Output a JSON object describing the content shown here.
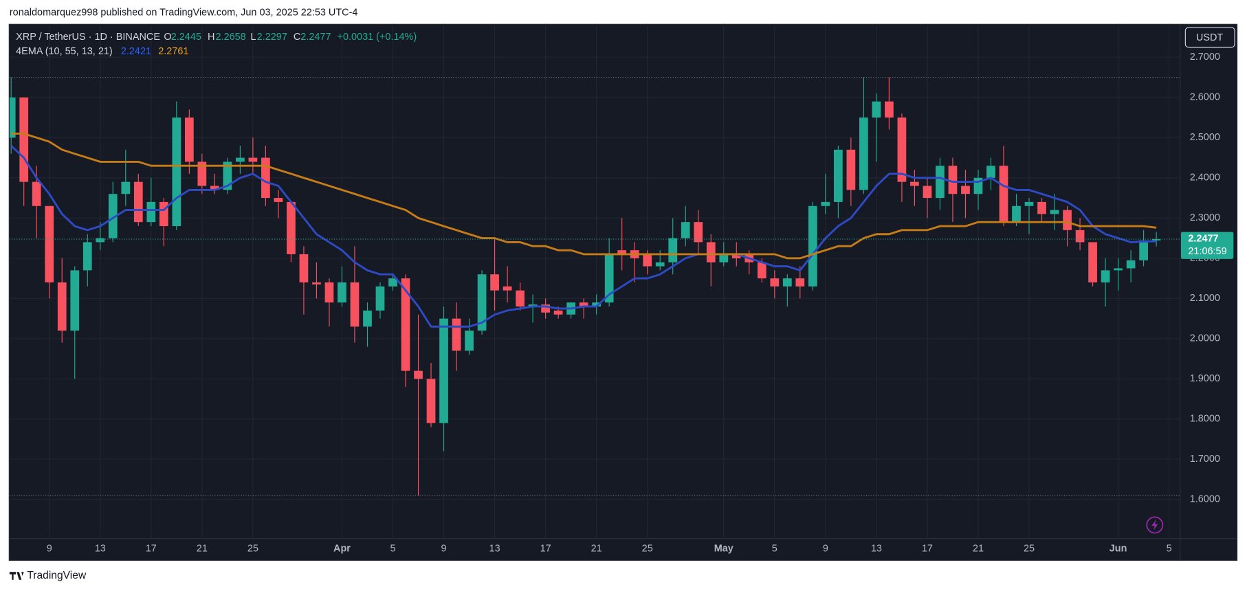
{
  "header": "ronaldomarquez998 published on TradingView.com, Jun 03, 2025 22:53 UTC-4",
  "footer": "TradingView",
  "chart_data": {
    "type": "candlestick",
    "symbol": "XRP / TetherUS · 1D · BINANCE",
    "ohlc_labels": [
      "O",
      "H",
      "L",
      "C"
    ],
    "change": "+0.0031 (+0.14%)",
    "indicator": "4EMA (10, 55, 13, 21)",
    "currency": "USDT",
    "countdown": "21:06:59",
    "categories": [
      "2025-03-06",
      "2025-03-07",
      "2025-03-08",
      "2025-03-09",
      "2025-03-10",
      "2025-03-11",
      "2025-03-12",
      "2025-03-13",
      "2025-03-14",
      "2025-03-15",
      "2025-03-16",
      "2025-03-17",
      "2025-03-18",
      "2025-03-19",
      "2025-03-20",
      "2025-03-21",
      "2025-03-22",
      "2025-03-23",
      "2025-03-24",
      "2025-03-25",
      "2025-03-26",
      "2025-03-27",
      "2025-03-28",
      "2025-03-29",
      "2025-03-30",
      "2025-03-31",
      "2025-04-01",
      "2025-04-02",
      "2025-04-03",
      "2025-04-04",
      "2025-04-05",
      "2025-04-06",
      "2025-04-07",
      "2025-04-08",
      "2025-04-09",
      "2025-04-10",
      "2025-04-11",
      "2025-04-12",
      "2025-04-13",
      "2025-04-14",
      "2025-04-15",
      "2025-04-16",
      "2025-04-17",
      "2025-04-18",
      "2025-04-19",
      "2025-04-20",
      "2025-04-21",
      "2025-04-22",
      "2025-04-23",
      "2025-04-24",
      "2025-04-25",
      "2025-04-26",
      "2025-04-27",
      "2025-04-28",
      "2025-04-29",
      "2025-04-30",
      "2025-05-01",
      "2025-05-02",
      "2025-05-03",
      "2025-05-04",
      "2025-05-05",
      "2025-05-06",
      "2025-05-07",
      "2025-05-08",
      "2025-05-09",
      "2025-05-10",
      "2025-05-11",
      "2025-05-12",
      "2025-05-13",
      "2025-05-14",
      "2025-05-15",
      "2025-05-16",
      "2025-05-17",
      "2025-05-18",
      "2025-05-19",
      "2025-05-20",
      "2025-05-21",
      "2025-05-22",
      "2025-05-23",
      "2025-05-24",
      "2025-05-25",
      "2025-05-26",
      "2025-05-27",
      "2025-05-28",
      "2025-05-29",
      "2025-05-30",
      "2025-05-31",
      "2025-06-01",
      "2025-06-02",
      "2025-06-03",
      "2025-06-04"
    ],
    "open": [
      2.5,
      2.6,
      2.39,
      2.33,
      2.14,
      2.02,
      2.17,
      2.24,
      2.25,
      2.36,
      2.39,
      2.29,
      2.34,
      2.28,
      2.55,
      2.44,
      2.38,
      2.37,
      2.44,
      2.45,
      2.45,
      2.35,
      2.34,
      2.21,
      2.14,
      2.14,
      2.09,
      2.14,
      2.03,
      2.07,
      2.13,
      2.15,
      1.92,
      1.9,
      1.79,
      2.05,
      1.97,
      2.02,
      2.16,
      2.13,
      2.12,
      2.08,
      2.085,
      2.07,
      2.06,
      2.09,
      2.08,
      2.09,
      2.22,
      2.22,
      2.21,
      2.18,
      2.19,
      2.25,
      2.29,
      2.24,
      2.19,
      2.21,
      2.21,
      2.19,
      2.15,
      2.13,
      2.15,
      2.13,
      2.33,
      2.34,
      2.47,
      2.37,
      2.55,
      2.59,
      2.55,
      2.39,
      2.38,
      2.35,
      2.43,
      2.38,
      2.36,
      2.4,
      2.43,
      2.29,
      2.33,
      2.34,
      2.31,
      2.32,
      2.27,
      2.24,
      2.14,
      2.17,
      2.175,
      2.195,
      2.2445
    ],
    "high": [
      2.65,
      2.6,
      2.43,
      2.33,
      2.2,
      2.18,
      2.26,
      2.29,
      2.39,
      2.47,
      2.41,
      2.4,
      2.35,
      2.59,
      2.57,
      2.46,
      2.41,
      2.45,
      2.48,
      2.5,
      2.48,
      2.37,
      2.34,
      2.23,
      2.19,
      2.15,
      2.18,
      2.23,
      2.09,
      2.14,
      2.16,
      2.16,
      2.06,
      1.94,
      2.08,
      2.09,
      2.05,
      2.17,
      2.25,
      2.18,
      2.14,
      2.11,
      2.1,
      2.08,
      2.09,
      2.1,
      2.11,
      2.25,
      2.3,
      2.24,
      2.22,
      2.22,
      2.3,
      2.33,
      2.32,
      2.26,
      2.24,
      2.24,
      2.22,
      2.2,
      2.17,
      2.16,
      2.18,
      2.34,
      2.41,
      2.48,
      2.5,
      2.65,
      2.61,
      2.65,
      2.56,
      2.42,
      2.4,
      2.45,
      2.45,
      2.42,
      2.42,
      2.45,
      2.48,
      2.36,
      2.35,
      2.35,
      2.36,
      2.33,
      2.3,
      2.24,
      2.2,
      2.2,
      2.22,
      2.27,
      2.2658
    ],
    "low": [
      2.46,
      2.33,
      2.25,
      2.1,
      1.99,
      1.9,
      2.13,
      2.22,
      2.24,
      2.33,
      2.28,
      2.28,
      2.23,
      2.27,
      2.41,
      2.36,
      2.36,
      2.36,
      2.41,
      2.41,
      2.33,
      2.3,
      2.19,
      2.06,
      2.1,
      2.03,
      2.08,
      1.99,
      1.98,
      2.05,
      2.12,
      1.88,
      1.61,
      1.78,
      1.72,
      1.92,
      1.96,
      2.01,
      2.07,
      2.09,
      2.07,
      2.04,
      2.05,
      2.05,
      2.05,
      2.05,
      2.06,
      2.08,
      2.17,
      2.14,
      2.16,
      2.17,
      2.16,
      2.23,
      2.21,
      2.13,
      2.18,
      2.18,
      2.16,
      2.14,
      2.1,
      2.08,
      2.1,
      2.12,
      2.31,
      2.3,
      2.33,
      2.36,
      2.44,
      2.52,
      2.34,
      2.33,
      2.3,
      2.32,
      2.29,
      2.3,
      2.32,
      2.37,
      2.28,
      2.28,
      2.26,
      2.29,
      2.27,
      2.23,
      2.22,
      2.13,
      2.08,
      2.12,
      2.14,
      2.18,
      2.2297
    ],
    "close": [
      2.6,
      2.39,
      2.33,
      2.14,
      2.02,
      2.17,
      2.24,
      2.25,
      2.36,
      2.39,
      2.29,
      2.34,
      2.28,
      2.55,
      2.44,
      2.38,
      2.37,
      2.44,
      2.45,
      2.44,
      2.35,
      2.34,
      2.21,
      2.14,
      2.135,
      2.09,
      2.14,
      2.03,
      2.07,
      2.13,
      2.15,
      1.92,
      1.9,
      1.79,
      2.05,
      1.97,
      2.02,
      2.16,
      2.12,
      2.12,
      2.08,
      2.085,
      2.065,
      2.06,
      2.09,
      2.08,
      2.09,
      2.21,
      2.21,
      2.2,
      2.18,
      2.19,
      2.25,
      2.29,
      2.24,
      2.19,
      2.21,
      2.2,
      2.19,
      2.15,
      2.13,
      2.15,
      2.13,
      2.33,
      2.34,
      2.47,
      2.37,
      2.55,
      2.59,
      2.55,
      2.39,
      2.38,
      2.35,
      2.43,
      2.36,
      2.36,
      2.4,
      2.43,
      2.29,
      2.33,
      2.34,
      2.31,
      2.32,
      2.27,
      2.24,
      2.14,
      2.17,
      2.175,
      2.195,
      2.2445,
      2.2477
    ],
    "up_color": "#22ab94",
    "down_color": "#f7525f",
    "overlays": [
      {
        "color": "#2e4ac4",
        "values": [
          2.48,
          2.45,
          2.4,
          2.36,
          2.31,
          2.28,
          2.27,
          2.28,
          2.3,
          2.32,
          2.32,
          2.32,
          2.32,
          2.35,
          2.37,
          2.37,
          2.37,
          2.38,
          2.4,
          2.41,
          2.39,
          2.38,
          2.34,
          2.3,
          2.26,
          2.24,
          2.22,
          2.19,
          2.17,
          2.16,
          2.16,
          2.12,
          2.08,
          2.03,
          2.03,
          2.03,
          2.03,
          2.04,
          2.06,
          2.07,
          2.075,
          2.08,
          2.08,
          2.075,
          2.075,
          2.08,
          2.08,
          2.11,
          2.13,
          2.15,
          2.15,
          2.16,
          2.18,
          2.2,
          2.21,
          2.21,
          2.21,
          2.21,
          2.2,
          2.19,
          2.18,
          2.18,
          2.17,
          2.21,
          2.25,
          2.28,
          2.3,
          2.34,
          2.38,
          2.41,
          2.41,
          2.4,
          2.4,
          2.4,
          2.39,
          2.39,
          2.39,
          2.4,
          2.38,
          2.37,
          2.37,
          2.36,
          2.35,
          2.34,
          2.32,
          2.28,
          2.26,
          2.25,
          2.24,
          2.242,
          2.2421
        ]
      },
      {
        "color": "#c67c17",
        "values": [
          2.51,
          2.51,
          2.5,
          2.49,
          2.47,
          2.46,
          2.45,
          2.44,
          2.44,
          2.44,
          2.44,
          2.43,
          2.43,
          2.43,
          2.43,
          2.43,
          2.43,
          2.43,
          2.43,
          2.43,
          2.43,
          2.42,
          2.41,
          2.4,
          2.39,
          2.38,
          2.37,
          2.36,
          2.35,
          2.34,
          2.33,
          2.32,
          2.3,
          2.29,
          2.28,
          2.27,
          2.26,
          2.25,
          2.25,
          2.24,
          2.24,
          2.23,
          2.23,
          2.22,
          2.22,
          2.21,
          2.21,
          2.21,
          2.21,
          2.21,
          2.21,
          2.21,
          2.21,
          2.21,
          2.21,
          2.21,
          2.21,
          2.21,
          2.21,
          2.21,
          2.21,
          2.2,
          2.2,
          2.21,
          2.22,
          2.23,
          2.23,
          2.25,
          2.26,
          2.26,
          2.27,
          2.27,
          2.27,
          2.28,
          2.28,
          2.28,
          2.29,
          2.29,
          2.29,
          2.29,
          2.29,
          2.29,
          2.29,
          2.29,
          2.28,
          2.28,
          2.28,
          2.28,
          2.28,
          2.28,
          2.2761
        ]
      }
    ],
    "range_lines": [
      2.65,
      1.61
    ],
    "ylim": [
      1.503,
      2.783
    ],
    "yticks": [
      {
        "value": 1.6,
        "label": "1.6000"
      },
      {
        "value": 1.7,
        "label": "1.7000"
      },
      {
        "value": 1.8,
        "label": "1.8000"
      },
      {
        "value": 1.9,
        "label": "1.9000"
      },
      {
        "value": 2.0,
        "label": "2.0000"
      },
      {
        "value": 2.1,
        "label": "2.1000"
      },
      {
        "value": 2.2,
        "label": "2.2000"
      },
      {
        "value": 2.3,
        "label": "2.3000"
      },
      {
        "value": 2.4,
        "label": "2.4000"
      },
      {
        "value": 2.5,
        "label": "2.5000"
      },
      {
        "value": 2.6,
        "label": "2.6000"
      },
      {
        "value": 2.7,
        "label": "2.7000"
      }
    ],
    "xticks": [
      {
        "value": "2025-03-09",
        "label": "9"
      },
      {
        "value": "2025-03-13",
        "label": "13"
      },
      {
        "value": "2025-03-17",
        "label": "17"
      },
      {
        "value": "2025-03-21",
        "label": "21"
      },
      {
        "value": "2025-03-25",
        "label": "25"
      },
      {
        "value": "2025-04-01",
        "label": "Apr"
      },
      {
        "value": "2025-04-05",
        "label": "5"
      },
      {
        "value": "2025-04-09",
        "label": "9"
      },
      {
        "value": "2025-04-13",
        "label": "13"
      },
      {
        "value": "2025-04-17",
        "label": "17"
      },
      {
        "value": "2025-04-21",
        "label": "21"
      },
      {
        "value": "2025-04-25",
        "label": "25"
      },
      {
        "value": "2025-05-01",
        "label": "May"
      },
      {
        "value": "2025-05-05",
        "label": "5"
      },
      {
        "value": "2025-05-09",
        "label": "9"
      },
      {
        "value": "2025-05-13",
        "label": "13"
      },
      {
        "value": "2025-05-17",
        "label": "17"
      },
      {
        "value": "2025-05-21",
        "label": "21"
      },
      {
        "value": "2025-05-25",
        "label": "25"
      },
      {
        "value": "2025-06-01",
        "label": "Jun"
      },
      {
        "value": "2025-06-05",
        "label": "5"
      }
    ],
    "grid": true
  }
}
